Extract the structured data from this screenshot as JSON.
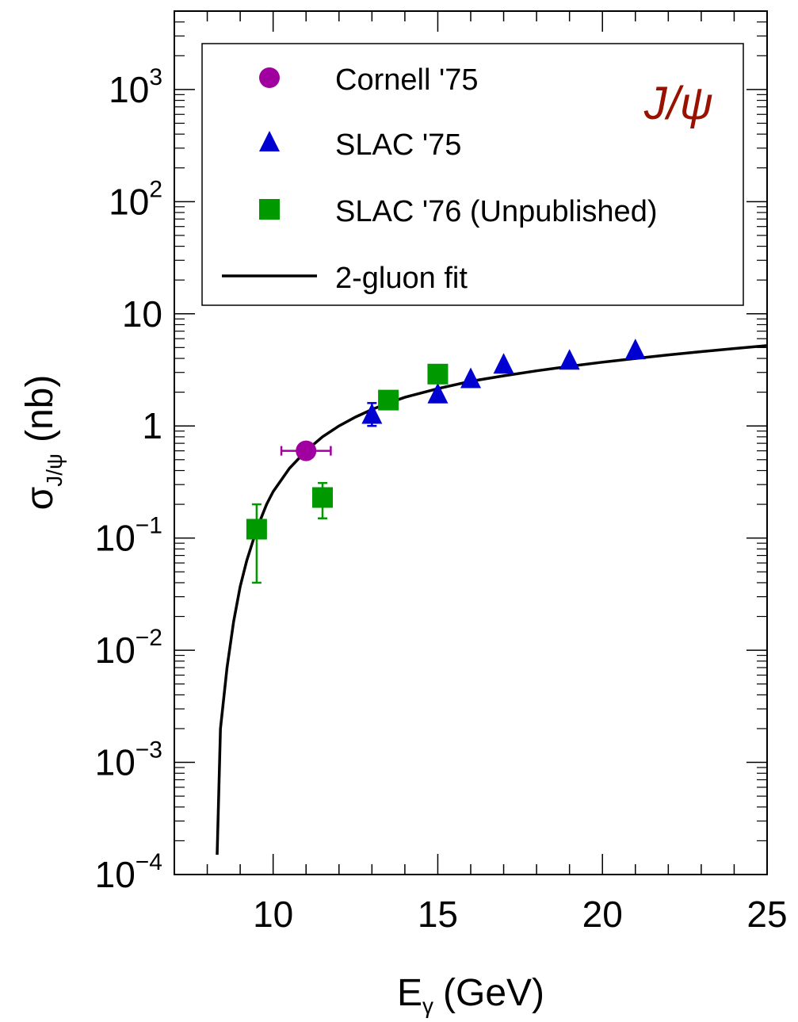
{
  "colors": {
    "cornell": "#a000a0",
    "slac75": "#0000d0",
    "slac76": "#009900",
    "fit": "#000000",
    "particle": "#991100"
  },
  "chart_data": {
    "type": "scatter",
    "particle_label": "J/ψ",
    "xlabel": "E",
    "xlabel_sub": "γ",
    "xlabel_unit": "(GeV)",
    "ylabel": "σ",
    "ylabel_sub": "J/ψ",
    "ylabel_unit": "(nb)",
    "xlim": [
      7,
      25
    ],
    "ylim": [
      0.0001,
      5000
    ],
    "yscale": "log",
    "grid": false,
    "legend_position": "top",
    "x_ticks": [
      "10",
      "15",
      "20",
      "25"
    ],
    "y_ticks": [
      {
        "base": "10",
        "exp": "−4"
      },
      {
        "base": "10",
        "exp": "−3"
      },
      {
        "base": "10",
        "exp": "−2"
      },
      {
        "base": "10",
        "exp": "−1"
      },
      {
        "base": "1",
        "exp": ""
      },
      {
        "base": "10",
        "exp": ""
      },
      {
        "base": "10",
        "exp": "2"
      },
      {
        "base": "10",
        "exp": "3"
      }
    ],
    "series": [
      {
        "name": "Cornell '75",
        "marker": "circle",
        "points": [
          {
            "x": 11.0,
            "y": 0.6,
            "xerr": 0.75
          }
        ]
      },
      {
        "name": "SLAC '75",
        "marker": "triangle",
        "points": [
          {
            "x": 13.0,
            "y": 1.25,
            "ylo": 1.0,
            "yhi": 1.6
          },
          {
            "x": 15.0,
            "y": 1.9
          },
          {
            "x": 16.0,
            "y": 2.6
          },
          {
            "x": 17.0,
            "y": 3.5
          },
          {
            "x": 19.0,
            "y": 3.8
          },
          {
            "x": 21.0,
            "y": 4.7
          }
        ]
      },
      {
        "name": "SLAC '76 (Unpublished)",
        "marker": "square",
        "points": [
          {
            "x": 9.5,
            "y": 0.12,
            "ylo": 0.04,
            "yhi": 0.2
          },
          {
            "x": 11.5,
            "y": 0.23,
            "ylo": 0.15,
            "yhi": 0.31
          },
          {
            "x": 13.5,
            "y": 1.7
          },
          {
            "x": 15.0,
            "y": 2.9
          }
        ]
      }
    ],
    "fit": {
      "name": "2-gluon fit",
      "x": [
        8.3,
        8.4,
        8.6,
        8.8,
        9.0,
        9.2,
        9.5,
        9.8,
        10.0,
        10.5,
        11.0,
        11.5,
        12.0,
        12.5,
        13.0,
        13.5,
        14.0,
        15.0,
        16.0,
        17.0,
        18.0,
        19.0,
        20.0,
        21.0,
        22.0,
        23.0,
        24.0,
        25.0
      ],
      "y": [
        0.00015,
        0.002,
        0.007,
        0.018,
        0.037,
        0.063,
        0.12,
        0.2,
        0.26,
        0.42,
        0.6,
        0.8,
        1.0,
        1.2,
        1.4,
        1.6,
        1.8,
        2.15,
        2.5,
        2.8,
        3.1,
        3.4,
        3.7,
        4.0,
        4.3,
        4.6,
        4.9,
        5.2
      ]
    }
  }
}
